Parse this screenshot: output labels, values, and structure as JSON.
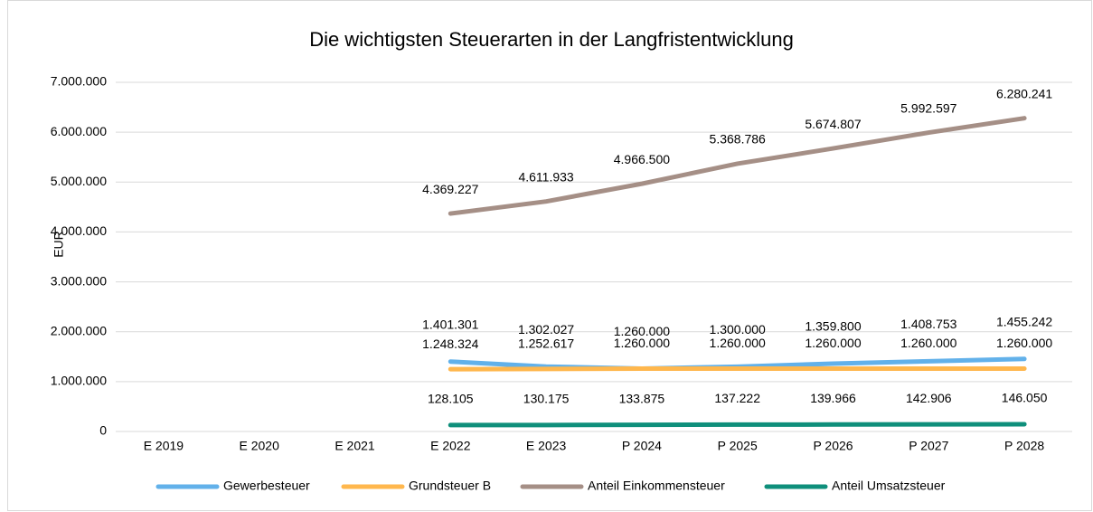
{
  "chart_data": {
    "type": "line",
    "title": "Die wichtigsten Steuerarten in der Langfristentwicklung",
    "y_label": "EUR",
    "categories": [
      "E 2019",
      "E 2020",
      "E 2021",
      "E 2022",
      "E 2023",
      "P 2024",
      "P 2025",
      "P 2026",
      "P 2027",
      "P 2028"
    ],
    "series": [
      {
        "name": "Gewerbesteuer",
        "color": "#62b1ea",
        "values": [
          null,
          null,
          null,
          1401301,
          1302027,
          1260000,
          1300000,
          1359800,
          1408753,
          1455242
        ],
        "value_labels": [
          null,
          null,
          null,
          "1.401.301",
          "1.302.027",
          "1.260.000",
          "1.300.000",
          "1.359.800",
          "1.408.753",
          "1.455.242"
        ]
      },
      {
        "name": "Grundsteuer B",
        "color": "#ffb74d",
        "values": [
          null,
          null,
          null,
          1248324,
          1252617,
          1260000,
          1260000,
          1260000,
          1260000,
          1260000
        ],
        "value_labels": [
          null,
          null,
          null,
          "1.248.324",
          "1.252.617",
          "1.260.000",
          "1.260.000",
          "1.260.000",
          "1.260.000",
          "1.260.000"
        ]
      },
      {
        "name": "Anteil Einkommensteuer",
        "color": "#a58f86",
        "values": [
          null,
          null,
          null,
          4369227,
          4611933,
          4966500,
          5368786,
          5674807,
          5992597,
          6280241
        ],
        "value_labels": [
          null,
          null,
          null,
          "4.369.227",
          "4.611.933",
          "4.966.500",
          "5.368.786",
          "5.674.807",
          "5.992.597",
          "6.280.241"
        ]
      },
      {
        "name": "Anteil Umsatzsteuer",
        "color": "#0f8f7b",
        "values": [
          null,
          null,
          null,
          128105,
          130175,
          133875,
          137222,
          139966,
          142906,
          146050
        ],
        "value_labels": [
          null,
          null,
          null,
          "128.105",
          "130.175",
          "133.875",
          "137.222",
          "139.966",
          "142.906",
          "146.050"
        ]
      }
    ],
    "ylim": [
      0,
      7000000
    ],
    "yticks": [
      0,
      {
        "value": 1000000,
        "label": "1.000.000"
      },
      {
        "value": 2000000,
        "label": "2.000.000"
      },
      {
        "value": 3000000,
        "label": "3.000.000"
      },
      {
        "value": 4000000,
        "label": "4.000.000"
      },
      {
        "value": 5000000,
        "label": "5.000.000"
      },
      {
        "value": 6000000,
        "label": "6.000.000"
      },
      {
        "value": 7000000,
        "label": "7.000.000"
      }
    ],
    "grid": true,
    "legend": "bottom"
  }
}
